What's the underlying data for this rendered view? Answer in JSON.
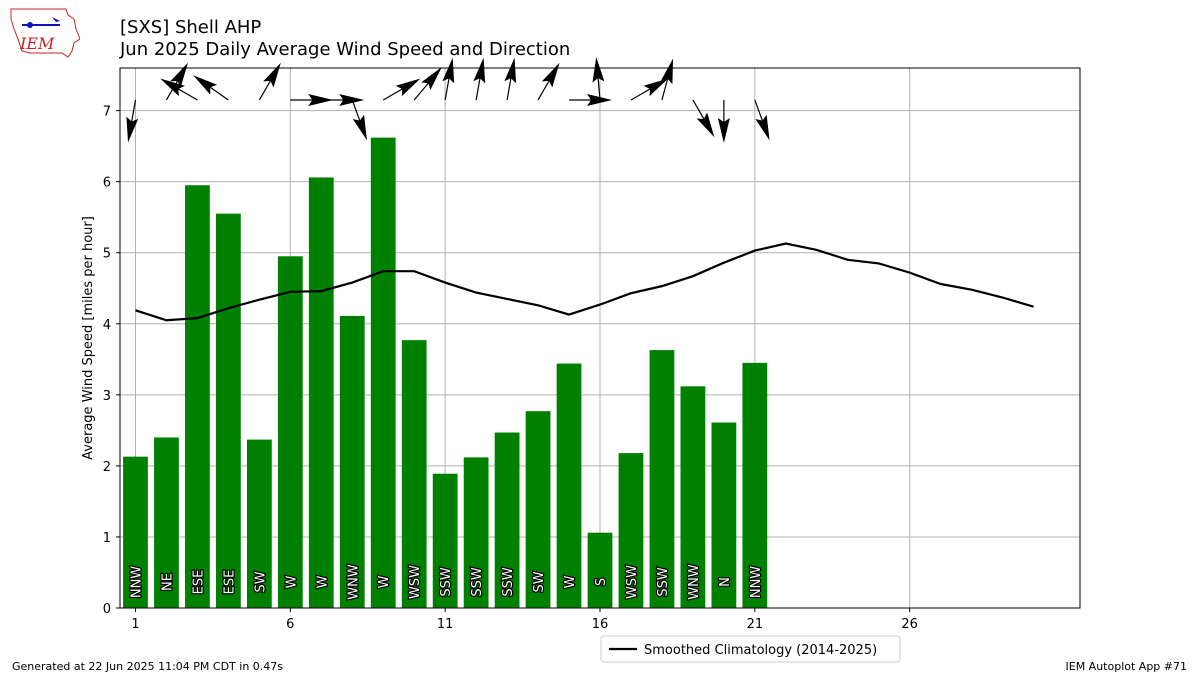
{
  "header": {
    "title": "[SXS] Shell AHP",
    "subtitle": "Jun 2025 Daily Average Wind Speed and Direction"
  },
  "logo": {
    "text": "IEM"
  },
  "footer": {
    "generated": "Generated at 22 Jun 2025 11:04 PM CDT in 0.47s",
    "app": "IEM Autoplot App #71"
  },
  "colors": {
    "bar": "#008000",
    "climatology": "#000000",
    "grid": "#b0b0b0",
    "logo_red": "#cc2222",
    "logo_blue": "#1010c0"
  },
  "chart_data": {
    "type": "bar",
    "ylabel": "Average Wind Speed [miles per hour]",
    "xlabel": "",
    "xlim": [
      0.5,
      31.5
    ],
    "ylim": [
      0,
      7.6
    ],
    "xticks": [
      1,
      6,
      11,
      16,
      21,
      26
    ],
    "yticks": [
      0,
      1,
      2,
      3,
      4,
      5,
      6,
      7
    ],
    "grid": true,
    "legend_position": "below-center",
    "days": [
      1,
      2,
      3,
      4,
      5,
      6,
      7,
      8,
      9,
      10,
      11,
      12,
      13,
      14,
      15,
      16,
      17,
      18,
      19,
      20,
      21
    ],
    "series": [
      {
        "name": "",
        "values": [
          2.13,
          2.4,
          5.95,
          5.55,
          2.37,
          4.95,
          6.06,
          4.11,
          6.62,
          3.77,
          1.89,
          2.12,
          2.47,
          2.77,
          3.44,
          1.06,
          2.18,
          3.63,
          3.12,
          2.61,
          3.45
        ],
        "directions": [
          "NNW",
          "NE",
          "ESE",
          "ESE",
          "SW",
          "W",
          "W",
          "WNW",
          "W",
          "WSW",
          "SSW",
          "SSW",
          "SSW",
          "SW",
          "W",
          "S",
          "WSW",
          "SSW",
          "WNW",
          "N",
          "NNW"
        ],
        "arrow_angles_deg": [
          190,
          30,
          300,
          305,
          30,
          90,
          90,
          160,
          60,
          40,
          10,
          10,
          10,
          30,
          90,
          355,
          60,
          15,
          150,
          180,
          160
        ]
      },
      {
        "name": "Smoothed Climatology (2014-2025)",
        "x": [
          1,
          2,
          3,
          4,
          5,
          6,
          7,
          8,
          9,
          10,
          11,
          12,
          13,
          14,
          15,
          16,
          17,
          18,
          19,
          20,
          21,
          22,
          23,
          24,
          25,
          26,
          27,
          28,
          29,
          30
        ],
        "values": [
          4.19,
          4.05,
          4.08,
          4.22,
          4.34,
          4.45,
          4.46,
          4.58,
          4.74,
          4.74,
          4.58,
          4.44,
          4.35,
          4.26,
          4.13,
          4.27,
          4.43,
          4.53,
          4.67,
          4.86,
          5.03,
          5.13,
          5.04,
          4.9,
          4.85,
          4.72,
          4.56,
          4.48,
          4.37,
          4.24
        ]
      }
    ]
  }
}
